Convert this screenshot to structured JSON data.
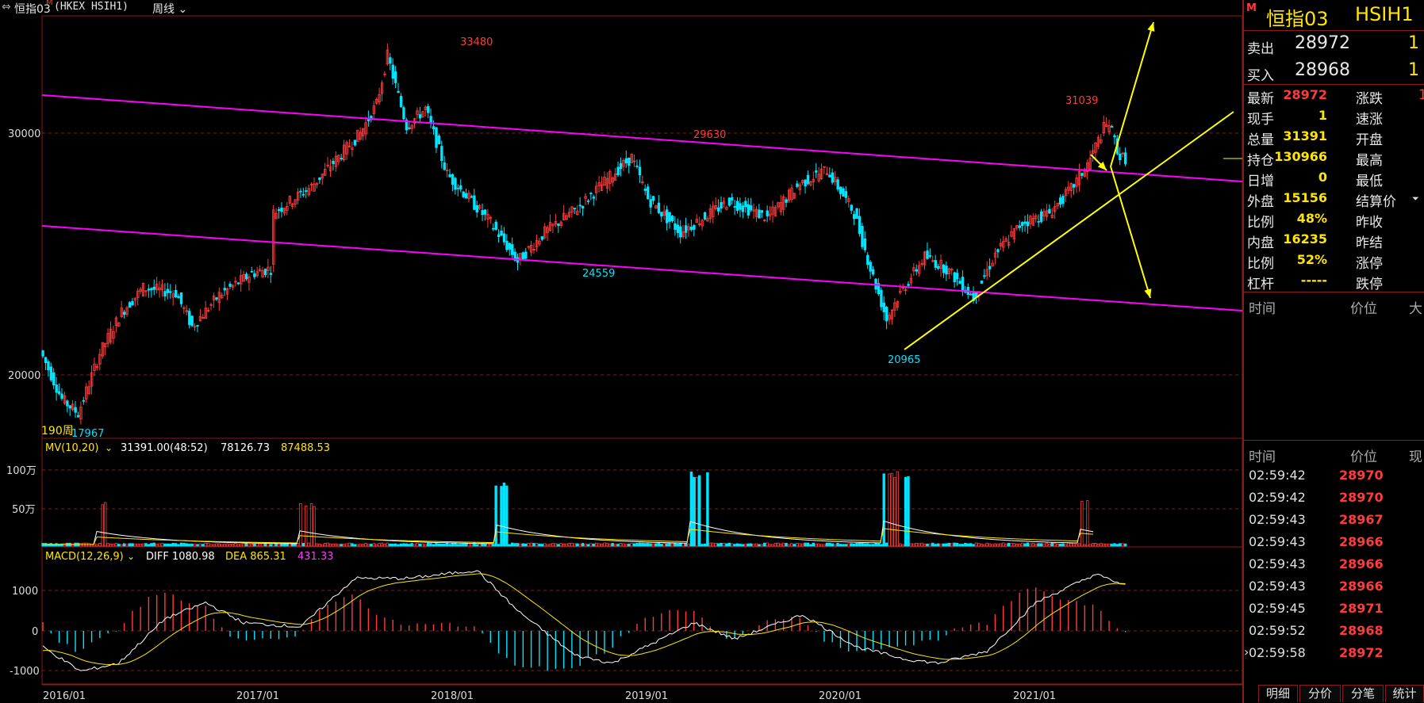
{
  "topbar": {
    "menu_icon": "menu-icon",
    "symbol": "恒指03",
    "symbol_badge": "M",
    "exchange": "(HKEX HSIH1)",
    "period": "周线"
  },
  "price_chart": {
    "y_ticks": [
      "30000",
      "20000"
    ],
    "annotations": [
      "33480",
      "29630",
      "24559",
      "31039",
      "20965",
      "17967"
    ],
    "period_label": "190周"
  },
  "volume_pane": {
    "indicator": "MV(10,20)",
    "value1": "31391.00(48:52)",
    "value2": "78126.73",
    "value3": "87488.53",
    "y_ticks": [
      "100万",
      "50万"
    ]
  },
  "macd_pane": {
    "indicator": "MACD(12,26,9)",
    "diff": "DIFF 1080.98",
    "dea": "DEA 865.31",
    "macd": "431.33",
    "y_ticks": [
      "1000",
      "0",
      "-1000"
    ]
  },
  "x_axis": [
    "2016/01",
    "2017/01",
    "2018/01",
    "2019/01",
    "2020/01",
    "2021/01"
  ],
  "quote": {
    "badge": "M",
    "name": "恒指03",
    "code": "HSIH1",
    "ask_label": "卖出",
    "ask": "28972",
    "ask_vol": "1",
    "bid_label": "买入",
    "bid": "28968",
    "bid_vol": "1",
    "rows": [
      {
        "l": "最新",
        "v": "28972",
        "r": "涨跌",
        "rv": "1"
      },
      {
        "l": "现手",
        "v": "1",
        "r": "速涨",
        "rv": ""
      },
      {
        "l": "总量",
        "v": "31391",
        "r": "开盘",
        "rv": ""
      },
      {
        "l": "持仓",
        "v": "130966",
        "r": "最高",
        "rv": ""
      },
      {
        "l": "日增",
        "v": "0",
        "r": "最低",
        "rv": ""
      },
      {
        "l": "外盘",
        "v": "15156",
        "r": "结算价",
        "rv": ""
      },
      {
        "l": "比例",
        "v": "48%",
        "r": "昨收",
        "rv": ""
      },
      {
        "l": "内盘",
        "v": "16235",
        "r": "昨结",
        "rv": ""
      },
      {
        "l": "比例",
        "v": "52%",
        "r": "涨停",
        "rv": ""
      },
      {
        "l": "杠杆",
        "v": "-----",
        "r": "跌停",
        "rv": ""
      }
    ]
  },
  "ticks_header1": {
    "time": "时间",
    "price": "价位",
    "extra": "大"
  },
  "ticks_header2": {
    "time": "时间",
    "price": "价位",
    "extra": "现"
  },
  "ticks": [
    {
      "time": "02:59:42",
      "price": "28970"
    },
    {
      "time": "02:59:42",
      "price": "28970"
    },
    {
      "time": "02:59:43",
      "price": "28967"
    },
    {
      "time": "02:59:43",
      "price": "28966"
    },
    {
      "time": "02:59:43",
      "price": "28966"
    },
    {
      "time": "02:59:43",
      "price": "28966"
    },
    {
      "time": "02:59:45",
      "price": "28971"
    },
    {
      "time": "02:59:52",
      "price": "28968"
    },
    {
      "time": "02:59:58",
      "price": "28972"
    }
  ],
  "bottom_tabs": [
    "明细",
    "分价",
    "分笔",
    "统计"
  ],
  "colors": {
    "up": "#ff3b3b",
    "down": "#00e5ff",
    "channel": "#ff00ff",
    "trend": "#ffff00",
    "grid": "#8b1a1a"
  }
}
